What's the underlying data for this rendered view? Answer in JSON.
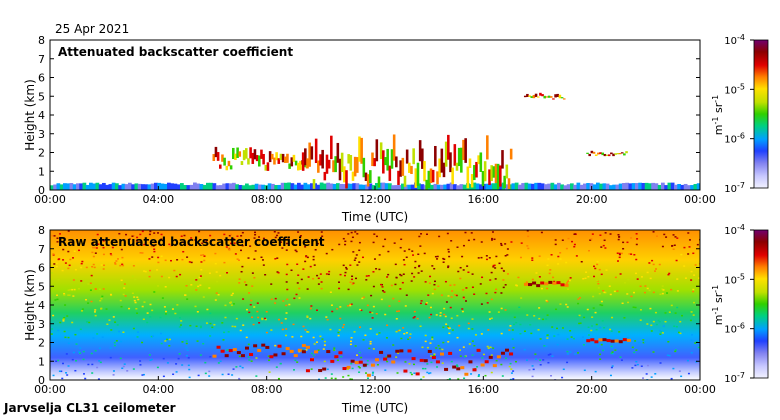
{
  "header": {
    "date": "25 Apr 2021"
  },
  "footer": {
    "station": "Jarvselja CL31 ceilometer"
  },
  "colors": {
    "colormap": [
      "#f2f2ff",
      "#c8c8ff",
      "#8080f0",
      "#2040ff",
      "#00a0ff",
      "#00d080",
      "#30d000",
      "#c0e000",
      "#ffe000",
      "#ff8000",
      "#e00000",
      "#8b0000",
      "#700070"
    ]
  },
  "chart_data": [
    {
      "type": "heatmap",
      "title": "Attenuated backscatter coefficient",
      "xlabel": "Time (UTC)",
      "ylabel": "Height (km)",
      "xticks": [
        "00:00",
        "04:00",
        "08:00",
        "12:00",
        "16:00",
        "20:00",
        "00:00"
      ],
      "xlim": [
        0,
        24
      ],
      "ylim": [
        0,
        8
      ],
      "yticks": [
        "0",
        "1",
        "2",
        "3",
        "4",
        "5",
        "6",
        "7",
        "8"
      ],
      "colorbar": {
        "ticks": [
          "10-4",
          "10-5",
          "10-6",
          "10-7"
        ],
        "exponents": [
          "-4",
          "-5",
          "-6",
          "-7"
        ],
        "label": "m-1 sr-1",
        "range": [
          1e-07,
          0.0001
        ],
        "scale": "log"
      },
      "features": [
        {
          "name": "boundary-layer",
          "t_start": 0,
          "t_end": 24,
          "height_km": [
            0,
            0.4
          ]
        },
        {
          "name": "cloud-layer-morning",
          "t_start": 6.0,
          "t_end": 9.5,
          "height_km": [
            1.0,
            2.3
          ]
        },
        {
          "name": "convective-plumes",
          "t_start": 9.3,
          "t_end": 17.0,
          "height_km": [
            0,
            2.8
          ]
        },
        {
          "name": "elevated-layer",
          "t_start": 17.5,
          "t_end": 19.0,
          "height_km": [
            4.8,
            5.2
          ]
        },
        {
          "name": "evening-cloud",
          "t_start": 19.8,
          "t_end": 21.3,
          "height_km": [
            1.8,
            2.1
          ]
        }
      ]
    },
    {
      "type": "heatmap",
      "title": "Raw attenuated backscatter coefficient",
      "xlabel": "Time (UTC)",
      "ylabel": "Height (km)",
      "xticks": [
        "00:00",
        "04:00",
        "08:00",
        "12:00",
        "16:00",
        "20:00",
        "00:00"
      ],
      "xlim": [
        0,
        24
      ],
      "ylim": [
        0,
        8
      ],
      "yticks": [
        "0",
        "1",
        "2",
        "3",
        "4",
        "5",
        "6",
        "7",
        "8"
      ],
      "colorbar": {
        "ticks": [
          "10-4",
          "10-5",
          "10-6",
          "10-7"
        ],
        "exponents": [
          "-4",
          "-5",
          "-6",
          "-7"
        ],
        "label": "m-1 sr-1",
        "range": [
          1e-07,
          0.0001
        ],
        "scale": "log"
      }
    }
  ]
}
